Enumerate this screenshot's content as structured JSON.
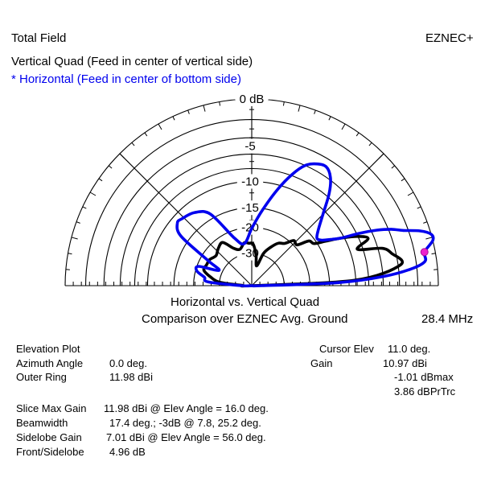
{
  "header": {
    "left_title": "Total Field",
    "right_title": "EZNEC+",
    "series_vertical": "Vertical Quad (Feed in center of vertical side)",
    "series_horizontal": "* Horizontal (Feed in center of bottom side)"
  },
  "footer": {
    "title_line1": "Horizontal vs. Vertical Quad",
    "title_line2": "Comparison over EZNEC Avg. Ground",
    "frequency": "28.4 MHz"
  },
  "info": {
    "plot_type": "Elevation Plot",
    "azimuth_label": "Azimuth Angle",
    "azimuth_value": "0.0 deg.",
    "outer_ring_label": "Outer Ring",
    "outer_ring_value": "11.98 dBi",
    "slice_max_gain_label": "Slice Max Gain",
    "slice_max_gain_value": "11.98 dBi @ Elev Angle = 16.0 deg.",
    "beamwidth_label": "Beamwidth",
    "beamwidth_value": "17.4 deg.; -3dB @ 7.8, 25.2 deg.",
    "sidelobe_gain_label": "Sidelobe Gain",
    "sidelobe_gain_value": "7.01 dBi @ Elev Angle = 56.0 deg.",
    "front_sidelobe_label": "Front/Sidelobe",
    "front_sidelobe_value": "4.96 dB"
  },
  "cursor": {
    "elev_label": "Cursor Elev",
    "elev_value": "11.0 deg.",
    "gain_label": "Gain",
    "gain_value": "10.97 dBi",
    "dbmax_value": "-1.01 dBmax",
    "dbprtrc_value": "3.86 dBPrTrc"
  },
  "colors": {
    "horizontal_series": "#0000ee",
    "vertical_series": "#000000",
    "cursor_marker": "#ee22cc",
    "grid": "#000000"
  },
  "chart_data": {
    "type": "polar-elevation",
    "outer_ring_dbi": 11.98,
    "ring_labels": [
      "0 dB",
      "-5",
      "-10",
      "-15",
      "-20",
      "-30"
    ],
    "ring_db": [
      0,
      -5,
      -10,
      -15,
      -20,
      -30
    ],
    "grid": true,
    "radial_lines_deg": [
      0,
      45,
      90,
      135,
      180
    ],
    "series": [
      {
        "name": "Vertical Quad (Feed in center of vertical side)",
        "elev_deg": [
          3,
          8,
          13,
          16,
          19,
          22,
          25,
          28,
          31,
          34,
          38,
          42,
          47,
          52,
          58,
          64,
          70,
          76,
          82,
          88,
          94,
          100,
          108,
          116,
          124,
          132,
          140,
          148,
          155,
          162,
          168,
          174,
          178
        ],
        "gain_db": [
          -10.2,
          -3.7,
          -4.5,
          -5.5,
          -8.8,
          -6.8,
          -8.1,
          -10.5,
          -13.2,
          -15.6,
          -16.2,
          -19.2,
          -19.0,
          -21.4,
          -22.6,
          -25.4,
          -29.1,
          -38.0,
          -30.8,
          -25.8,
          -25.4,
          -25.0,
          -27.2,
          -25.7,
          -21.9,
          -22.6,
          -23.8,
          -22.8,
          -22.7,
          -22.5,
          -25.5,
          -30.2,
          -50.0
        ]
      },
      {
        "name": "* Horizontal (Feed in center of bottom side)",
        "elev_deg": [
          0,
          2,
          4,
          6,
          8,
          11,
          14,
          16,
          18,
          20,
          22,
          24,
          26,
          28,
          30,
          33,
          36,
          40,
          45,
          50,
          54,
          58,
          62,
          66,
          70,
          75,
          82,
          90,
          100,
          110,
          120,
          128,
          136,
          140,
          145,
          150,
          155,
          160,
          165,
          170,
          175,
          180
        ],
        "gain_db": [
          -50.0,
          -13.1,
          -5.9,
          -2.6,
          -1.1,
          -1.0,
          0.0,
          0.0,
          -0.9,
          -2.5,
          -3.7,
          -5.4,
          -7.7,
          -10.5,
          -12.0,
          -13.8,
          -14.4,
          -13.1,
          -10.6,
          -7.5,
          -5.7,
          -4.9,
          -5.2,
          -6.0,
          -7.8,
          -10.8,
          -15.4,
          -20.3,
          -25.3,
          -22.4,
          -14.0,
          -12.0,
          -11.3,
          -11.2,
          -13.2,
          -22.3,
          -28.2,
          -20.5,
          -20.4,
          -23.3,
          -24.8,
          -50.0
        ]
      }
    ],
    "cursor": {
      "elev_deg": 11.0,
      "gain_db": -1.01
    }
  }
}
